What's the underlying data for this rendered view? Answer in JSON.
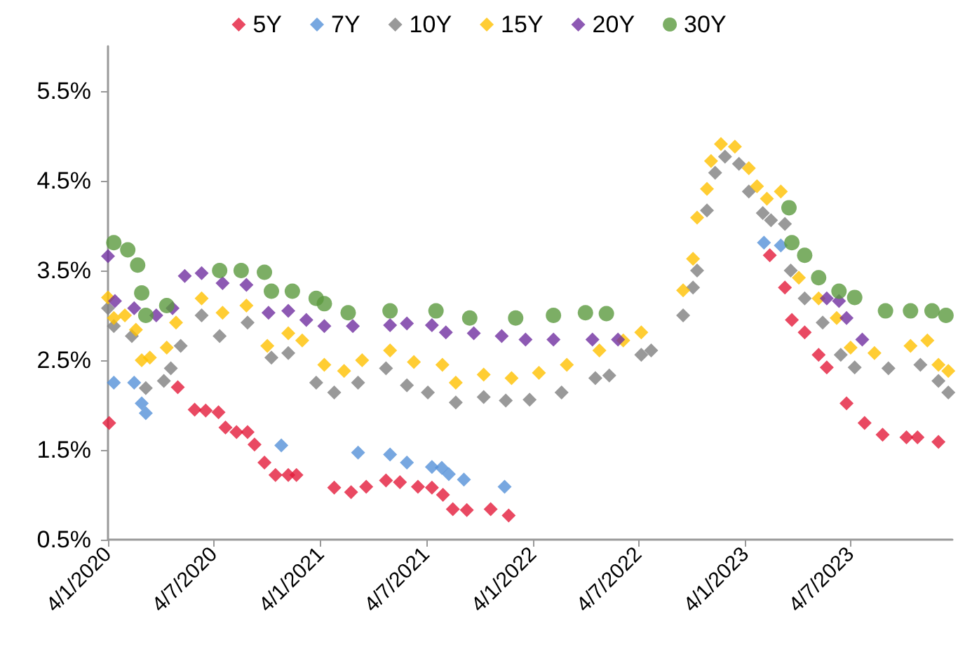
{
  "chart_data": {
    "type": "scatter",
    "legend": "top",
    "grid": false,
    "xlim": [
      "2020-01-04",
      "2023-12-26"
    ],
    "xticks": [
      {
        "value": "2020-01-04",
        "label": "4/1/2020"
      },
      {
        "value": "2020-07-04",
        "label": "4/7/2020"
      },
      {
        "value": "2021-01-04",
        "label": "4/1/2021"
      },
      {
        "value": "2021-07-04",
        "label": "4/7/2021"
      },
      {
        "value": "2022-01-04",
        "label": "4/1/2022"
      },
      {
        "value": "2022-07-04",
        "label": "4/7/2022"
      },
      {
        "value": "2023-01-04",
        "label": "4/1/2023"
      },
      {
        "value": "2023-07-04",
        "label": "4/7/2023"
      }
    ],
    "ylim": [
      0.5,
      6.0
    ],
    "yticks": [
      {
        "value": 0.5,
        "label": "0.5%"
      },
      {
        "value": 1.5,
        "label": "1.5%"
      },
      {
        "value": 2.5,
        "label": "2.5%"
      },
      {
        "value": 3.5,
        "label": "3.5%"
      },
      {
        "value": 4.5,
        "label": "4.5%"
      },
      {
        "value": 5.5,
        "label": "5.5%"
      }
    ],
    "series": [
      {
        "name": "5Y",
        "color": "#e31b3b",
        "marker": "diamond",
        "x": [
          "2020-01-06",
          "2020-05-03",
          "2020-06-01",
          "2020-06-20",
          "2020-07-12",
          "2020-07-24",
          "2020-08-12",
          "2020-08-31",
          "2020-09-12",
          "2020-09-29",
          "2020-10-18",
          "2020-11-09",
          "2020-11-23",
          "2021-01-27",
          "2021-02-25",
          "2021-03-23",
          "2021-04-26",
          "2021-05-20",
          "2021-06-20",
          "2021-07-14",
          "2021-08-02",
          "2021-08-19",
          "2021-09-12",
          "2021-10-23",
          "2021-11-23",
          "2023-02-15",
          "2023-03-13",
          "2023-03-25",
          "2023-04-16",
          "2023-05-10",
          "2023-05-24",
          "2023-06-27",
          "2023-07-28",
          "2023-08-28",
          "2023-10-08",
          "2023-10-27",
          "2023-12-02"
        ],
        "values": [
          1.8,
          2.2,
          1.95,
          1.94,
          1.92,
          1.75,
          1.7,
          1.7,
          1.56,
          1.36,
          1.22,
          1.22,
          1.22,
          1.08,
          1.03,
          1.09,
          1.16,
          1.14,
          1.09,
          1.08,
          1.0,
          0.84,
          0.83,
          0.84,
          0.77,
          3.67,
          3.31,
          2.95,
          2.81,
          2.56,
          2.42,
          2.02,
          1.8,
          1.67,
          1.64,
          1.64,
          1.59
        ]
      },
      {
        "name": "7Y",
        "color": "#5591d8",
        "marker": "diamond",
        "x": [
          "2020-01-14",
          "2020-02-18",
          "2020-03-02",
          "2020-03-09",
          "2020-10-28",
          "2021-03-09",
          "2021-05-03",
          "2021-06-01",
          "2021-07-14",
          "2021-07-31",
          "2021-08-12",
          "2021-09-07",
          "2021-11-16",
          "2023-02-05",
          "2023-03-06"
        ],
        "values": [
          2.25,
          2.25,
          2.02,
          1.91,
          1.55,
          1.47,
          1.45,
          1.36,
          1.31,
          1.3,
          1.23,
          1.17,
          1.09,
          3.81,
          3.78
        ]
      },
      {
        "name": "10Y",
        "color": "#808080",
        "marker": "diamond",
        "x": [
          "2020-01-04",
          "2020-01-14",
          "2020-02-14",
          "2020-03-09",
          "2020-04-09",
          "2020-04-21",
          "2020-05-08",
          "2020-06-13",
          "2020-07-14",
          "2020-08-31",
          "2020-10-11",
          "2020-11-09",
          "2020-12-27",
          "2021-01-27",
          "2021-03-09",
          "2021-04-26",
          "2021-06-01",
          "2021-07-07",
          "2021-08-24",
          "2021-10-11",
          "2021-11-18",
          "2021-12-29",
          "2022-02-22",
          "2022-04-21",
          "2022-05-15",
          "2022-07-09",
          "2022-07-26",
          "2022-09-19",
          "2022-10-06",
          "2022-10-13",
          "2022-10-30",
          "2022-11-13",
          "2022-11-30",
          "2022-12-24",
          "2023-01-10",
          "2023-02-03",
          "2023-02-17",
          "2023-03-13",
          "2023-03-23",
          "2023-04-16",
          "2023-05-17",
          "2023-06-17",
          "2023-07-11",
          "2023-09-07",
          "2023-11-01",
          "2023-12-02",
          "2023-12-19"
        ],
        "values": [
          3.08,
          2.88,
          2.77,
          2.19,
          2.27,
          2.41,
          2.66,
          3.0,
          2.77,
          2.92,
          2.53,
          2.58,
          2.25,
          2.14,
          2.25,
          2.41,
          2.22,
          2.14,
          2.03,
          2.09,
          2.05,
          2.06,
          2.14,
          2.3,
          2.33,
          2.56,
          2.61,
          3.0,
          3.31,
          3.5,
          4.17,
          4.59,
          4.77,
          4.69,
          4.38,
          4.14,
          4.06,
          4.02,
          3.5,
          3.19,
          2.92,
          2.56,
          2.42,
          2.41,
          2.45,
          2.27,
          2.14
        ]
      },
      {
        "name": "15Y",
        "color": "#ffc000",
        "marker": "diamond",
        "x": [
          "2020-01-04",
          "2020-01-14",
          "2020-02-02",
          "2020-02-21",
          "2020-03-02",
          "2020-03-16",
          "2020-04-14",
          "2020-04-30",
          "2020-06-13",
          "2020-07-19",
          "2020-08-29",
          "2020-10-04",
          "2020-11-09",
          "2020-12-03",
          "2021-01-10",
          "2021-02-13",
          "2021-03-16",
          "2021-05-03",
          "2021-06-13",
          "2021-08-01",
          "2021-08-24",
          "2021-10-11",
          "2021-11-28",
          "2022-01-14",
          "2022-03-03",
          "2022-04-28",
          "2022-06-08",
          "2022-07-09",
          "2022-09-19",
          "2022-10-06",
          "2022-10-13",
          "2022-10-30",
          "2022-11-06",
          "2022-11-23",
          "2022-12-17",
          "2023-01-10",
          "2023-01-24",
          "2023-02-10",
          "2023-03-06",
          "2023-03-23",
          "2023-04-06",
          "2023-05-10",
          "2023-06-10",
          "2023-07-04",
          "2023-08-14",
          "2023-10-15",
          "2023-11-13",
          "2023-12-02",
          "2023-12-19"
        ],
        "values": [
          3.2,
          2.97,
          3.0,
          2.84,
          2.5,
          2.53,
          2.64,
          2.92,
          3.19,
          3.03,
          3.11,
          2.66,
          2.8,
          2.72,
          2.45,
          2.38,
          2.5,
          2.61,
          2.48,
          2.45,
          2.25,
          2.34,
          2.3,
          2.36,
          2.45,
          2.61,
          2.72,
          2.81,
          3.28,
          3.63,
          4.09,
          4.41,
          4.72,
          4.91,
          4.88,
          4.64,
          4.44,
          4.3,
          4.38,
          null,
          3.42,
          3.19,
          2.97,
          2.64,
          2.58,
          2.66,
          2.72,
          2.45,
          2.38
        ]
      },
      {
        "name": "20Y",
        "color": "#7030a0",
        "marker": "diamond",
        "x": [
          "2020-01-04",
          "2020-01-16",
          "2020-02-18",
          "2020-03-27",
          "2020-04-24",
          "2020-05-15",
          "2020-06-13",
          "2020-07-19",
          "2020-08-29",
          "2020-10-06",
          "2020-11-09",
          "2020-12-10",
          "2021-01-10",
          "2021-02-28",
          "2021-05-03",
          "2021-06-01",
          "2021-07-14",
          "2021-08-07",
          "2021-09-24",
          "2021-11-11",
          "2021-12-22",
          "2022-02-08",
          "2022-04-16",
          "2022-05-30",
          "2023-05-24",
          "2023-06-14",
          "2023-06-27",
          "2023-07-24"
        ],
        "values": [
          3.66,
          3.16,
          3.08,
          3.0,
          3.08,
          3.44,
          3.47,
          3.36,
          3.34,
          3.03,
          3.05,
          2.95,
          2.88,
          2.88,
          2.89,
          2.91,
          2.89,
          2.81,
          2.8,
          2.77,
          2.73,
          2.73,
          2.73,
          2.73,
          3.19,
          3.16,
          2.97,
          2.73
        ]
      },
      {
        "name": "30Y",
        "color": "#5b9a3f",
        "marker": "circle",
        "x": [
          "2020-01-14",
          "2020-02-07",
          "2020-02-24",
          "2020-03-02",
          "2020-03-09",
          "2020-04-14",
          "2020-07-14",
          "2020-08-20",
          "2020-09-29",
          "2020-10-11",
          "2020-11-16",
          "2020-12-27",
          "2021-01-10",
          "2021-02-20",
          "2021-05-03",
          "2021-07-21",
          "2021-09-17",
          "2021-12-05",
          "2022-02-08",
          "2022-04-04",
          "2022-05-10",
          "2023-03-20",
          "2023-03-25",
          "2023-04-16",
          "2023-05-10",
          "2023-06-14",
          "2023-07-11",
          "2023-09-02",
          "2023-10-15",
          "2023-11-21",
          "2023-12-15"
        ],
        "values": [
          3.81,
          3.73,
          3.56,
          3.25,
          3.0,
          3.11,
          3.5,
          3.5,
          3.48,
          3.27,
          3.27,
          3.19,
          3.13,
          3.03,
          3.05,
          3.05,
          2.97,
          2.97,
          3.0,
          3.03,
          3.02,
          4.2,
          3.81,
          3.67,
          3.42,
          3.27,
          3.2,
          3.05,
          3.05,
          3.05,
          3.0
        ]
      }
    ]
  }
}
